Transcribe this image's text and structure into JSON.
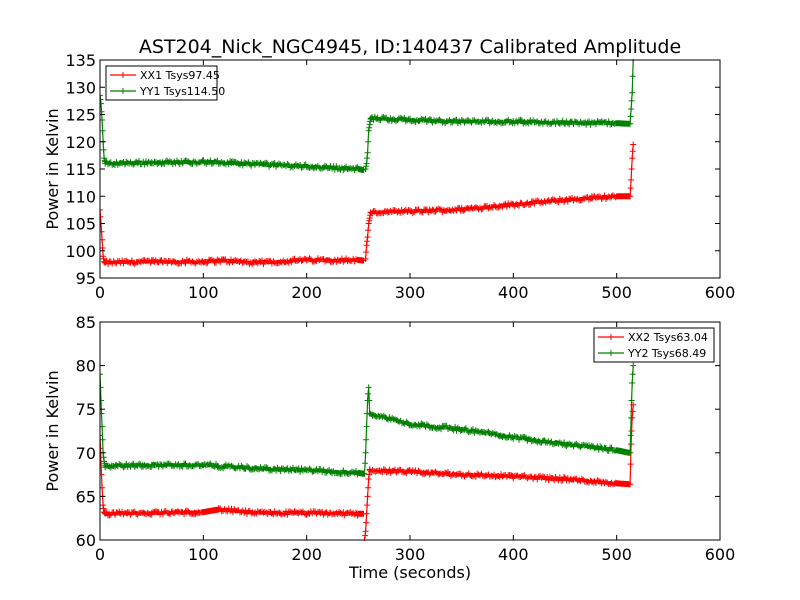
{
  "chart_data": {
    "type": "line",
    "title": "AST204_Nick_NGC4945, ID:140437 Calibrated Amplitude",
    "subplots": [
      {
        "xlabel": "",
        "ylabel": "Power in Kelvin",
        "xlim": [
          0,
          600
        ],
        "ylim": [
          95,
          135
        ],
        "xticks": [
          0,
          100,
          200,
          300,
          400,
          500,
          600
        ],
        "yticks": [
          95,
          100,
          105,
          110,
          115,
          120,
          125,
          130,
          135
        ],
        "legend": "top-left",
        "series": [
          {
            "name": "XX1 Tsys97.45",
            "color": "#ff0000",
            "segments": [
              {
                "x": [
                  0,
                  1,
                  2,
                  3,
                  4,
                  5,
                  50,
                  100,
                  120,
                  150,
                  200,
                  250,
                  255
                ],
                "y": [
                  107.5,
                  105,
                  102,
                  99,
                  98,
                  97.8,
                  98,
                  98,
                  98.2,
                  97.8,
                  98.3,
                  98.3,
                  98.2
                ]
              },
              {
                "x": [
                  257,
                  258,
                  259,
                  260,
                  262
                ],
                "y": [
                  98.5,
                  101,
                  102.5,
                  105,
                  107
                ]
              },
              {
                "x": [
                  262,
                  300,
                  350,
                  400,
                  450,
                  500,
                  512
                ],
                "y": [
                  107,
                  107.2,
                  107.6,
                  108.5,
                  109.3,
                  110,
                  110
                ]
              },
              {
                "x": [
                  513,
                  514,
                  515,
                  516
                ],
                "y": [
                  110,
                  113,
                  117,
                  119.5
                ]
              }
            ]
          },
          {
            "name": "YY1 Tsys114.50",
            "color": "#008000",
            "segments": [
              {
                "x": [
                  0,
                  1,
                  2,
                  3,
                  4,
                  5,
                  50,
                  100,
                  150,
                  200,
                  250,
                  255
                ],
                "y": [
                  128.5,
                  127,
                  124,
                  120,
                  117,
                  116,
                  116.2,
                  116.3,
                  115.9,
                  115.5,
                  115,
                  114.8
                ]
              },
              {
                "x": [
                  257,
                  258,
                  259,
                  260,
                  262
                ],
                "y": [
                  115,
                  116,
                  118,
                  122,
                  124.3
                ]
              },
              {
                "x": [
                  262,
                  300,
                  350,
                  400,
                  450,
                  500,
                  512
                ],
                "y": [
                  124.3,
                  124,
                  123.7,
                  123.7,
                  123.5,
                  123.4,
                  123.3
                ]
              },
              {
                "x": [
                  513,
                  514,
                  515,
                  516
                ],
                "y": [
                  123.3,
                  126,
                  129,
                  135
                ]
              }
            ]
          }
        ]
      },
      {
        "xlabel": "Time (seconds)",
        "ylabel": "Power in Kelvin",
        "xlim": [
          0,
          600
        ],
        "ylim": [
          60,
          85
        ],
        "xticks": [
          0,
          100,
          200,
          300,
          400,
          500,
          600
        ],
        "yticks": [
          60,
          65,
          70,
          75,
          80,
          85
        ],
        "legend": "top-right",
        "series": [
          {
            "name": "XX2 Tsys63.04",
            "color": "#ff0000",
            "segments": [
              {
                "x": [
                  0,
                  1,
                  2,
                  3,
                  4,
                  5,
                  50,
                  100,
                  115,
                  150,
                  200,
                  250,
                  255
                ],
                "y": [
                  72,
                  69,
                  66,
                  64,
                  63.2,
                  63,
                  63.1,
                  63.2,
                  63.5,
                  63.1,
                  63.1,
                  63,
                  63
                ]
              },
              {
                "x": [
                  256,
                  257,
                  258,
                  259,
                  260,
                  261
                ],
                "y": [
                  60,
                  61,
                  63,
                  65,
                  67,
                  68
                ]
              },
              {
                "x": [
                  261,
                  300,
                  350,
                  400,
                  450,
                  500,
                  512
                ],
                "y": [
                  68,
                  67.8,
                  67.5,
                  67.3,
                  67,
                  66.5,
                  66.4
                ]
              },
              {
                "x": [
                  513,
                  514,
                  515,
                  516
                ],
                "y": [
                  66.4,
                  71,
                  74,
                  75.5
                ]
              }
            ]
          },
          {
            "name": "YY2 Tsys68.49",
            "color": "#008000",
            "segments": [
              {
                "x": [
                  0,
                  1,
                  2,
                  3,
                  4,
                  5,
                  50,
                  100,
                  150,
                  200,
                  250,
                  255
                ],
                "y": [
                  79,
                  76,
                  73,
                  70,
                  69,
                  68.5,
                  68.6,
                  68.6,
                  68.2,
                  68,
                  67.7,
                  67.6
                ]
              },
              {
                "x": [
                  256,
                  257,
                  258,
                  259,
                  260,
                  261
                ],
                "y": [
                  67.6,
                  70,
                  73,
                  76,
                  77.5,
                  74.5
                ]
              },
              {
                "x": [
                  261,
                  300,
                  350,
                  400,
                  450,
                  500,
                  512
                ],
                "y": [
                  74.5,
                  73.3,
                  72.7,
                  71.8,
                  71,
                  70.3,
                  70
                ]
              },
              {
                "x": [
                  513,
                  514,
                  515,
                  516
                ],
                "y": [
                  70,
                  74,
                  78,
                  80
                ]
              }
            ]
          }
        ]
      }
    ]
  }
}
